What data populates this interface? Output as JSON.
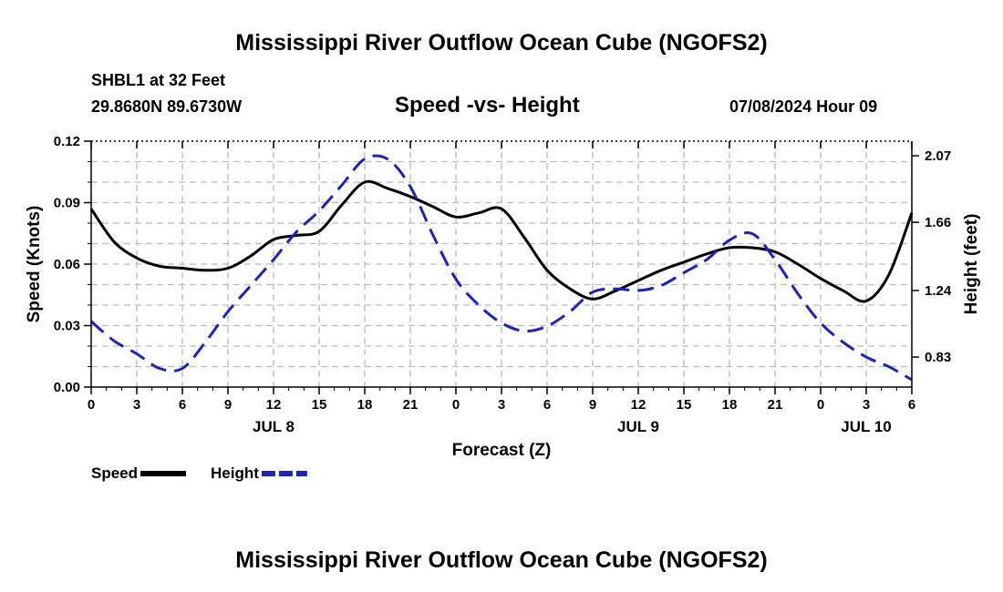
{
  "header": {
    "title": "Mississippi River Outflow Ocean Cube (NGOFS2)",
    "station": "SHBL1 at 32 Feet",
    "location": "29.8680N  89.6730W",
    "subtitle": "Speed -vs- Height",
    "datetime": "07/08/2024 Hour 09"
  },
  "footer": {
    "title": "Mississippi River Outflow Ocean Cube (NGOFS2)"
  },
  "chart_data": {
    "type": "line",
    "xlabel": "Forecast (Z)",
    "x_range_hours": [
      0,
      54
    ],
    "x_tick_hours": [
      0,
      3,
      6,
      9,
      12,
      15,
      18,
      21,
      24,
      27,
      30,
      33,
      36,
      39,
      42,
      45,
      48,
      51,
      54
    ],
    "x_tick_labels": [
      "0",
      "3",
      "6",
      "9",
      "12",
      "15",
      "18",
      "21",
      "0",
      "3",
      "6",
      "9",
      "12",
      "15",
      "18",
      "21",
      "0",
      "3",
      "6"
    ],
    "day_labels": [
      {
        "label": "JUL 8",
        "hour": 12
      },
      {
        "label": "JUL 9",
        "hour": 36
      },
      {
        "label": "JUL 10",
        "hour": 51
      }
    ],
    "y_left": {
      "label": "Speed (Knots)",
      "range": [
        0,
        0.12
      ],
      "ticks": [
        0.0,
        0.03,
        0.06,
        0.09,
        0.12
      ],
      "tick_labels": [
        "0.00",
        "0.03",
        "0.06",
        "0.09",
        "0.12"
      ]
    },
    "y_right": {
      "label": "Height (feet)",
      "range": [
        0.645,
        2.16
      ],
      "ticks": [
        0.83,
        1.24,
        1.66,
        2.07
      ],
      "tick_labels": [
        "0.83",
        "1.24",
        "1.66",
        "2.07"
      ]
    },
    "grid": true,
    "series": [
      {
        "name": "Speed",
        "axis": "left",
        "color": "#000000",
        "dash": "solid",
        "x": [
          0,
          1.5,
          3,
          4.5,
          6,
          7.5,
          9,
          10.5,
          12,
          13.5,
          15,
          16.5,
          18,
          19.5,
          21,
          22.5,
          24,
          25.5,
          27,
          28.5,
          30,
          31.5,
          33,
          34.5,
          36,
          37.5,
          39,
          40.5,
          42,
          43.5,
          45,
          46.5,
          48,
          49.5,
          51,
          52.5,
          54
        ],
        "y": [
          0.087,
          0.071,
          0.063,
          0.059,
          0.058,
          0.057,
          0.058,
          0.064,
          0.072,
          0.074,
          0.076,
          0.089,
          0.1,
          0.097,
          0.093,
          0.088,
          0.083,
          0.085,
          0.087,
          0.073,
          0.057,
          0.048,
          0.043,
          0.047,
          0.052,
          0.057,
          0.061,
          0.065,
          0.068,
          0.068,
          0.066,
          0.06,
          0.053,
          0.047,
          0.042,
          0.055,
          0.085
        ]
      },
      {
        "name": "Height",
        "axis": "right",
        "color": "#1a22c8",
        "dash": "dashed",
        "x": [
          0,
          1.5,
          3,
          4.5,
          6,
          7.5,
          9,
          10.5,
          12,
          13.5,
          15,
          16.5,
          18,
          19.5,
          21,
          22.5,
          24,
          25.5,
          27,
          28.5,
          30,
          31.5,
          33,
          34.5,
          36,
          37.5,
          39,
          40.5,
          42,
          43.5,
          45,
          46.5,
          48,
          49.5,
          51,
          52.5,
          54
        ],
        "y": [
          1.05,
          0.93,
          0.85,
          0.76,
          0.76,
          0.92,
          1.11,
          1.27,
          1.43,
          1.6,
          1.73,
          1.89,
          2.05,
          2.05,
          1.88,
          1.58,
          1.31,
          1.15,
          1.04,
          0.99,
          1.02,
          1.11,
          1.23,
          1.25,
          1.24,
          1.27,
          1.35,
          1.43,
          1.55,
          1.59,
          1.43,
          1.22,
          1.04,
          0.92,
          0.83,
          0.77,
          0.69
        ]
      }
    ],
    "legend": [
      {
        "label": "Speed",
        "series": "Speed"
      },
      {
        "label": "Height",
        "series": "Height"
      }
    ],
    "legend_placement": "bottom-left"
  }
}
